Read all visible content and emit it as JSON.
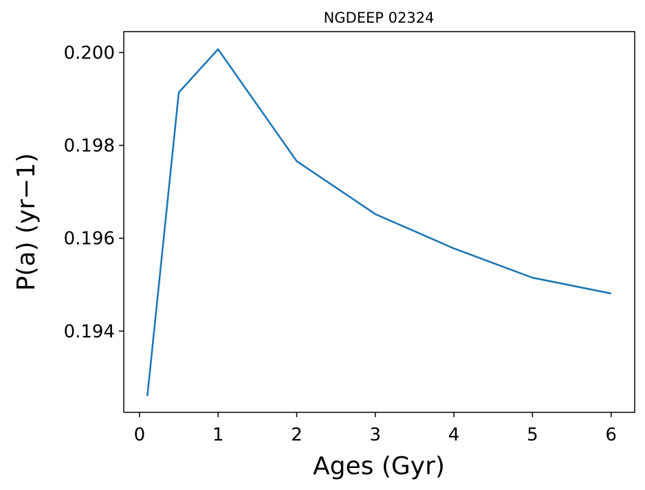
{
  "chart_data": {
    "type": "line",
    "title": "NGDEEP 02324",
    "xlabel": "Ages (Gyr)",
    "ylabel": "P(a) (yr−1)",
    "xlim": [
      -0.2,
      6.3
    ],
    "ylim": [
      0.19225,
      0.20045
    ],
    "xticks": [
      0,
      1,
      2,
      3,
      4,
      5,
      6
    ],
    "xtick_labels": [
      "0",
      "1",
      "2",
      "3",
      "4",
      "5",
      "6"
    ],
    "yticks": [
      0.194,
      0.196,
      0.198,
      0.2
    ],
    "ytick_labels": [
      "0.194",
      "0.196",
      "0.198",
      "0.200"
    ],
    "grid": false,
    "legend": "none",
    "series": [
      {
        "color": "#1f77b4",
        "x": [
          0.1,
          0.5,
          1,
          2,
          3,
          4,
          5,
          6
        ],
        "y": [
          0.1926,
          0.19914,
          0.20007,
          0.19766,
          0.19652,
          0.19578,
          0.19515,
          0.19481
        ]
      }
    ]
  }
}
